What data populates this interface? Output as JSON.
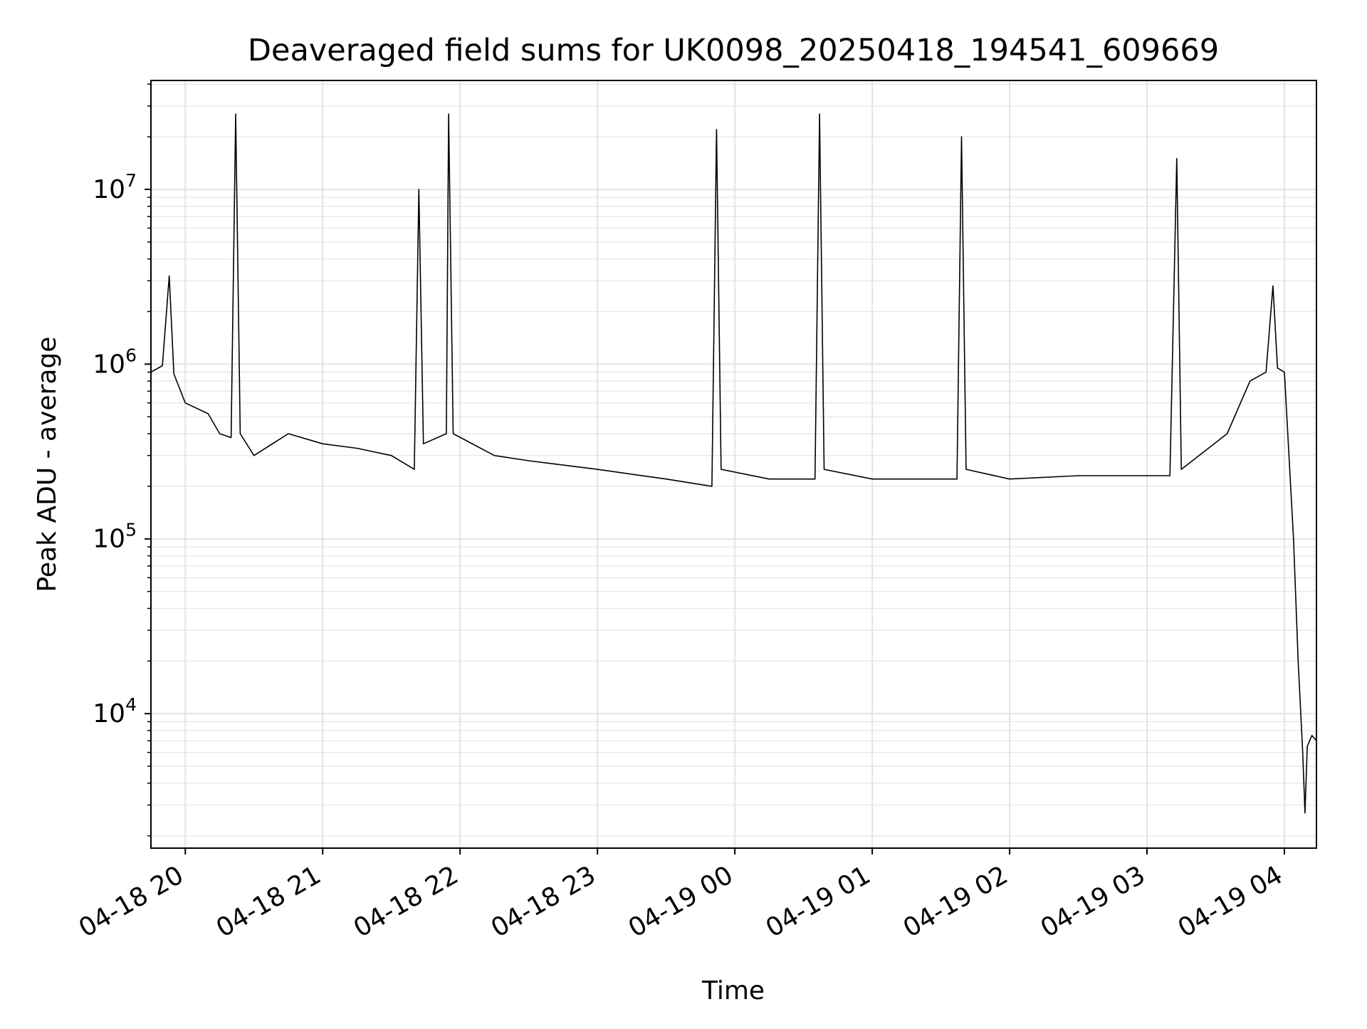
{
  "chart_data": {
    "type": "line",
    "title": "Deaveraged field sums for UK0098_20250418_194541_609669",
    "xlabel": "Time",
    "ylabel": "Peak ADU - average",
    "x_scale": "time",
    "y_scale": "log",
    "xlim": [
      "2025-04-18T19:45",
      "2025-04-19T04:14"
    ],
    "ylim": [
      1700,
      42000000
    ],
    "grid": true,
    "grid_minor_y": true,
    "x_ticks": [
      {
        "t": "2025-04-18T20:00",
        "label": "04-18 20"
      },
      {
        "t": "2025-04-18T21:00",
        "label": "04-18 21"
      },
      {
        "t": "2025-04-18T22:00",
        "label": "04-18 22"
      },
      {
        "t": "2025-04-18T23:00",
        "label": "04-18 23"
      },
      {
        "t": "2025-04-19T00:00",
        "label": "04-19 00"
      },
      {
        "t": "2025-04-19T01:00",
        "label": "04-19 01"
      },
      {
        "t": "2025-04-19T02:00",
        "label": "04-19 02"
      },
      {
        "t": "2025-04-19T03:00",
        "label": "04-19 03"
      },
      {
        "t": "2025-04-19T04:00",
        "label": "04-19 04"
      }
    ],
    "y_ticks": [
      {
        "value": 10000,
        "base": "10",
        "exp": "4"
      },
      {
        "value": 100000,
        "base": "10",
        "exp": "5"
      },
      {
        "value": 1000000,
        "base": "10",
        "exp": "6"
      },
      {
        "value": 10000000,
        "base": "10",
        "exp": "7"
      }
    ],
    "line_color": "#000000",
    "series": [
      {
        "points": [
          [
            "2025-04-18T19:45",
            900000
          ],
          [
            "2025-04-18T19:50",
            980000
          ],
          [
            "2025-04-18T19:53",
            3200000
          ],
          [
            "2025-04-18T19:55",
            880000
          ],
          [
            "2025-04-18T20:00",
            600000
          ],
          [
            "2025-04-18T20:10",
            520000
          ],
          [
            "2025-04-18T20:15",
            400000
          ],
          [
            "2025-04-18T20:20",
            380000
          ],
          [
            "2025-04-18T20:22",
            27000000
          ],
          [
            "2025-04-18T20:24",
            400000
          ],
          [
            "2025-04-18T20:30",
            300000
          ],
          [
            "2025-04-18T20:45",
            400000
          ],
          [
            "2025-04-18T21:00",
            350000
          ],
          [
            "2025-04-18T21:15",
            330000
          ],
          [
            "2025-04-18T21:30",
            300000
          ],
          [
            "2025-04-18T21:40",
            250000
          ],
          [
            "2025-04-18T21:42",
            10000000
          ],
          [
            "2025-04-18T21:44",
            350000
          ],
          [
            "2025-04-18T21:54",
            400000
          ],
          [
            "2025-04-18T21:55",
            27000000
          ],
          [
            "2025-04-18T21:57",
            400000
          ],
          [
            "2025-04-18T22:15",
            300000
          ],
          [
            "2025-04-18T22:30",
            280000
          ],
          [
            "2025-04-18T23:00",
            250000
          ],
          [
            "2025-04-18T23:30",
            220000
          ],
          [
            "2025-04-18T23:50",
            200000
          ],
          [
            "2025-04-18T23:52",
            22000000
          ],
          [
            "2025-04-18T23:54",
            250000
          ],
          [
            "2025-04-19T00:15",
            220000
          ],
          [
            "2025-04-19T00:35",
            220000
          ],
          [
            "2025-04-19T00:37",
            27000000
          ],
          [
            "2025-04-19T00:39",
            250000
          ],
          [
            "2025-04-19T01:00",
            220000
          ],
          [
            "2025-04-19T01:20",
            220000
          ],
          [
            "2025-04-19T01:37",
            220000
          ],
          [
            "2025-04-19T01:39",
            20000000
          ],
          [
            "2025-04-19T01:41",
            250000
          ],
          [
            "2025-04-19T02:00",
            220000
          ],
          [
            "2025-04-19T02:30",
            230000
          ],
          [
            "2025-04-19T03:10",
            230000
          ],
          [
            "2025-04-19T03:13",
            15000000
          ],
          [
            "2025-04-19T03:15",
            250000
          ],
          [
            "2025-04-19T03:35",
            400000
          ],
          [
            "2025-04-19T03:45",
            800000
          ],
          [
            "2025-04-19T03:52",
            900000
          ],
          [
            "2025-04-19T03:55",
            2800000
          ],
          [
            "2025-04-19T03:57",
            950000
          ],
          [
            "2025-04-19T04:00",
            900000
          ],
          [
            "2025-04-19T04:02",
            300000
          ],
          [
            "2025-04-19T04:04",
            100000
          ],
          [
            "2025-04-19T04:06",
            20000
          ],
          [
            "2025-04-19T04:08",
            6000
          ],
          [
            "2025-04-19T04:09",
            2700
          ],
          [
            "2025-04-19T04:10",
            6500
          ],
          [
            "2025-04-19T04:12",
            7500
          ],
          [
            "2025-04-19T04:14",
            7000
          ]
        ]
      }
    ]
  }
}
